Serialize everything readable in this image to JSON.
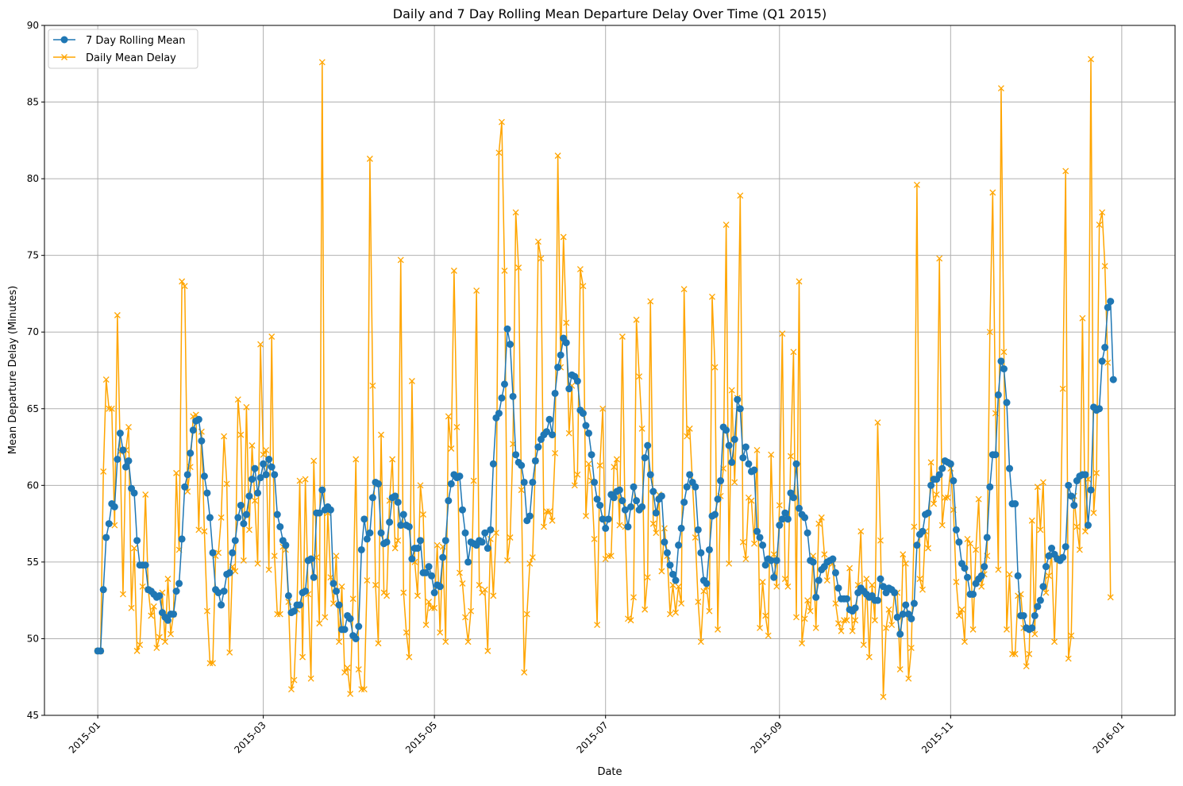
{
  "chart_data": {
    "type": "line",
    "title": "Daily and 7 Day Rolling Mean Departure Delay Over Time (Q1 2015)",
    "xlabel": "Date",
    "ylabel": "Mean Departure Delay (Minutes)",
    "ylim": [
      45,
      90
    ],
    "xlim": [
      "2014-12-13",
      "2016-01-20"
    ],
    "x_ticks": [
      "2015-01-01",
      "2015-03-01",
      "2015-05-01",
      "2015-07-01",
      "2015-09-01",
      "2015-11-01",
      "2016-01-01"
    ],
    "x_tick_labels": [
      "2015-01",
      "2015-03",
      "2015-05",
      "2015-07",
      "2015-09",
      "2015-11",
      "2016-01"
    ],
    "y_ticks": [
      45,
      50,
      55,
      60,
      65,
      70,
      75,
      80,
      85,
      90
    ],
    "y_tick_labels": [
      "45",
      "50",
      "55",
      "60",
      "65",
      "70",
      "75",
      "80",
      "85",
      "90"
    ],
    "grid": true,
    "legend_position": "top-left",
    "x_start": "2015-01-01",
    "x_step": "1 day",
    "series": [
      {
        "name": "7 Day Rolling Mean",
        "color": "#1f77b4",
        "marker": "circle",
        "values": [
          49.2,
          49.2,
          53.2,
          56.6,
          57.5,
          58.8,
          58.6,
          61.7,
          63.4,
          62.3,
          61.2,
          61.6,
          59.8,
          59.5,
          56.4,
          54.8,
          54.8,
          54.8,
          53.2,
          53.1,
          52.9,
          52.7,
          52.8,
          51.7,
          51.4,
          51.2,
          51.6,
          51.6,
          53.1,
          53.6,
          56.5,
          59.9,
          60.7,
          62.1,
          63.6,
          64.2,
          64.3,
          62.9,
          60.6,
          59.5,
          57.9,
          55.6,
          53.2,
          53.0,
          52.2,
          53.1,
          54.2,
          54.3,
          55.6,
          56.4,
          57.9,
          58.7,
          57.5,
          58.1,
          59.3,
          60.4,
          61.1,
          59.5,
          60.5,
          61.4,
          60.7,
          61.7,
          61.2,
          60.7,
          58.1,
          57.3,
          56.4,
          56.1,
          52.8,
          51.7,
          51.8,
          52.2,
          52.2,
          53.0,
          53.1,
          55.1,
          55.2,
          54.0,
          58.2,
          58.2,
          59.7,
          58.4,
          58.6,
          58.4,
          53.6,
          53.1,
          52.2,
          50.6,
          50.6,
          51.5,
          51.3,
          50.2,
          50.0,
          50.8,
          55.8,
          57.8,
          56.5,
          56.9,
          59.2,
          60.2,
          60.1,
          56.9,
          56.2,
          56.3,
          57.6,
          59.2,
          59.3,
          58.9,
          57.4,
          58.1,
          57.4,
          57.3,
          55.2,
          55.9,
          55.9,
          56.4,
          54.3,
          54.3,
          54.7,
          54.1,
          53.0,
          53.5,
          53.4,
          55.3,
          56.4,
          59.0,
          60.1,
          60.7,
          60.5,
          60.6,
          58.4,
          56.9,
          55.0,
          56.3,
          56.2,
          56.1,
          56.4,
          56.3,
          56.9,
          55.9,
          57.1,
          61.4,
          64.4,
          64.7,
          65.7,
          66.6,
          70.2,
          69.2,
          65.8,
          62.0,
          61.5,
          61.3,
          60.2,
          57.7,
          58.0,
          60.2,
          61.6,
          62.5,
          63.0,
          63.3,
          63.5,
          64.3,
          63.3,
          66.0,
          67.7,
          68.5,
          69.6,
          69.3,
          66.3,
          67.2,
          67.1,
          66.8,
          64.9,
          64.7,
          63.9,
          63.4,
          62.0,
          60.2,
          59.1,
          58.7,
          57.8,
          57.2,
          57.8,
          59.4,
          59.2,
          59.6,
          59.7,
          59.0,
          58.4,
          57.3,
          58.6,
          59.9,
          59.0,
          58.4,
          58.6,
          61.8,
          62.6,
          60.7,
          59.6,
          58.2,
          59.1,
          59.3,
          56.3,
          55.6,
          54.8,
          54.2,
          53.8,
          56.1,
          57.2,
          58.9,
          59.9,
          60.7,
          60.2,
          59.9,
          57.1,
          55.6,
          53.8,
          53.6,
          55.8,
          58.0,
          58.1,
          59.1,
          60.3,
          63.8,
          63.6,
          62.6,
          61.5,
          63.0,
          65.6,
          65.0,
          61.8,
          62.5,
          61.4,
          60.9,
          61.0,
          57.0,
          56.6,
          56.1,
          54.8,
          55.2,
          55.1,
          54.0,
          55.1,
          57.4,
          57.8,
          58.2,
          57.8,
          59.5,
          59.2,
          61.4,
          58.5,
          58.1,
          57.9,
          56.9,
          55.1,
          55.0,
          52.7,
          53.8,
          54.5,
          54.7,
          55.0,
          55.1,
          55.2,
          54.3,
          53.3,
          52.6,
          52.6,
          52.6,
          51.9,
          51.8,
          52.0,
          53.0,
          53.3,
          53.1,
          52.9,
          52.7,
          52.8,
          52.5,
          52.5,
          53.9,
          53.4,
          53.0,
          53.3,
          53.2,
          53.0,
          51.4,
          50.3,
          51.6,
          52.2,
          51.6,
          51.3,
          52.3,
          56.1,
          56.8,
          57.0,
          58.1,
          58.2,
          60.0,
          60.4,
          60.4,
          60.7,
          61.1,
          61.6,
          61.5,
          61.4,
          60.3,
          57.1,
          56.3,
          54.9,
          54.6,
          54.0,
          52.9,
          52.9,
          53.6,
          53.9,
          54.1,
          54.7,
          56.6,
          59.9,
          62.0,
          62.0,
          65.9,
          68.1,
          67.6,
          65.4,
          61.1,
          58.8,
          58.8,
          54.1,
          51.5,
          51.5,
          50.7,
          50.6,
          50.7,
          51.5,
          52.1,
          52.5,
          53.4,
          54.7,
          55.4,
          55.9,
          55.5,
          55.2,
          55.1,
          55.3,
          56.0,
          60.0,
          59.3,
          58.7,
          60.3,
          60.6,
          60.7,
          60.7,
          57.4,
          59.7,
          65.1,
          64.9,
          65.0,
          68.1,
          69.0,
          71.6,
          72.0,
          66.9
        ]
      },
      {
        "name": "Daily Mean Delay",
        "color": "#ffa500",
        "marker": "x",
        "values": [
          49.2,
          49.2,
          60.9,
          66.9,
          65.0,
          65.0,
          57.4,
          71.1,
          62.2,
          52.9,
          62.3,
          63.8,
          52.0,
          55.9,
          49.2,
          49.6,
          53.4,
          59.4,
          53.2,
          51.5,
          52.1,
          49.4,
          50.1,
          53.0,
          49.8,
          53.9,
          50.3,
          51.6,
          60.8,
          55.8,
          73.3,
          73.0,
          59.6,
          61.2,
          64.5,
          64.6,
          57.1,
          63.5,
          57.0,
          51.8,
          48.4,
          48.4,
          55.4,
          55.6,
          57.9,
          63.2,
          60.1,
          49.1,
          54.7,
          54.4,
          65.6,
          63.3,
          55.1,
          65.1,
          57.1,
          62.6,
          59.0,
          54.9,
          69.2,
          62.0,
          62.3,
          54.5,
          69.7,
          55.4,
          51.6,
          51.6,
          56.0,
          55.8,
          52.4,
          46.7,
          47.3,
          51.9,
          60.3,
          48.8,
          60.4,
          52.9,
          47.4,
          61.6,
          55.3,
          51.0,
          87.6,
          51.4,
          58.2,
          54.0,
          52.3,
          55.4,
          49.8,
          53.4,
          47.8,
          48.1,
          46.4,
          52.6,
          61.7,
          48.0,
          46.7,
          46.7,
          53.8,
          81.3,
          66.5,
          53.5,
          49.7,
          63.3,
          53.0,
          52.8,
          59.0,
          61.7,
          55.9,
          56.4,
          74.7,
          53.0,
          50.4,
          48.8,
          66.8,
          55.0,
          52.8,
          60.0,
          58.1,
          50.9,
          52.4,
          52.0,
          52.0,
          56.1,
          50.4,
          56.0,
          49.8,
          64.5,
          62.4,
          74.0,
          63.8,
          54.3,
          53.6,
          51.4,
          49.8,
          51.8,
          60.3,
          72.7,
          53.5,
          53.0,
          53.2,
          49.2,
          56.5,
          52.8,
          56.9,
          81.7,
          83.7,
          74.0,
          55.1,
          56.6,
          62.7,
          77.8,
          74.2,
          59.7,
          47.8,
          51.6,
          54.9,
          55.3,
          61.6,
          75.9,
          74.8,
          57.3,
          58.3,
          58.3,
          57.7,
          62.1,
          81.5,
          67.7,
          76.2,
          70.6,
          63.4,
          66.5,
          60.0,
          60.7,
          74.1,
          73.0,
          58.0,
          61.4,
          60.3,
          56.5,
          50.9,
          61.3,
          65.0,
          55.2,
          55.4,
          55.4,
          61.2,
          61.7,
          57.4,
          69.7,
          57.3,
          51.3,
          51.2,
          52.7,
          70.8,
          67.1,
          63.7,
          51.9,
          54.0,
          72.0,
          57.5,
          56.9,
          59.4,
          54.4,
          57.2,
          55.4,
          51.6,
          53.5,
          51.7,
          53.4,
          52.3,
          72.8,
          63.2,
          63.7,
          60.1,
          56.6,
          52.4,
          49.8,
          53.1,
          53.4,
          51.8,
          72.3,
          67.7,
          50.6,
          59.3,
          61.1,
          77.0,
          54.9,
          66.2,
          60.2,
          65.7,
          78.9,
          56.3,
          55.2,
          59.2,
          59.0,
          56.2,
          62.3,
          50.7,
          53.7,
          51.5,
          50.2,
          62.0,
          55.5,
          53.4,
          58.7,
          69.9,
          53.9,
          53.4,
          61.9,
          68.7,
          51.4,
          73.3,
          49.7,
          51.3,
          52.5,
          51.8,
          55.4,
          50.7,
          57.5,
          57.9,
          55.5,
          53.8,
          55.0,
          54.9,
          52.3,
          51.0,
          50.5,
          51.2,
          51.2,
          54.6,
          50.5,
          51.2,
          53.5,
          57.0,
          49.6,
          53.9,
          48.8,
          53.5,
          51.2,
          64.1,
          56.4,
          46.2,
          50.7,
          51.9,
          50.9,
          53.0,
          53.0,
          48.0,
          55.5,
          54.9,
          47.4,
          49.4,
          57.3,
          79.6,
          53.9,
          53.2,
          57.0,
          55.9,
          61.5,
          58.8,
          59.4,
          74.8,
          57.4,
          59.2,
          59.2,
          61.1,
          58.4,
          53.7,
          51.5,
          51.9,
          49.8,
          56.5,
          56.2,
          50.6,
          55.8,
          59.1,
          53.4,
          54.2,
          55.4,
          70.0,
          79.1,
          64.7,
          54.5,
          85.9,
          68.7,
          50.6,
          54.2,
          49.0,
          49.0,
          52.8,
          52.9,
          50.7,
          48.2,
          49.0,
          57.7,
          50.3,
          59.9,
          57.1,
          60.2,
          53.0,
          54.1,
          55.5,
          49.8,
          55.2,
          55.3,
          66.3,
          80.5,
          48.7,
          50.2,
          59.3,
          57.3,
          55.8,
          70.9,
          57.0,
          60.4,
          87.8,
          58.2,
          60.8,
          77.0,
          77.8,
          74.3,
          68.0,
          52.7
        ]
      }
    ]
  }
}
